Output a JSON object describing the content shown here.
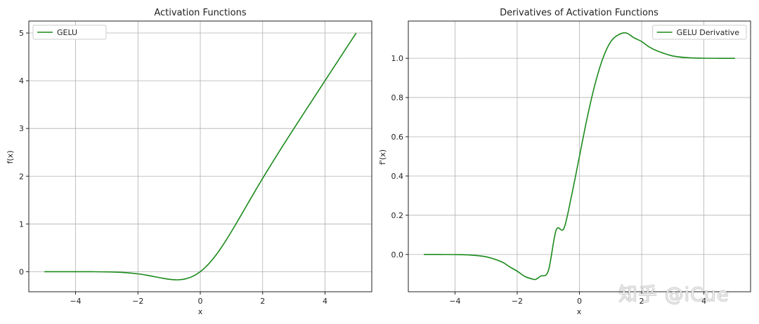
{
  "watermark": "知乎 @iCue",
  "chart_data": [
    {
      "type": "line",
      "title": "Activation Functions",
      "xlabel": "x",
      "ylabel": "f(x)",
      "xlim": [
        -5.5,
        5.5
      ],
      "ylim": [
        -0.42,
        5.25
      ],
      "xticks": [
        -4,
        -2,
        0,
        2,
        4
      ],
      "xtick_labels": [
        "−4",
        "−2",
        "0",
        "2",
        "4"
      ],
      "yticks": [
        0,
        1,
        2,
        3,
        4,
        5
      ],
      "ytick_labels": [
        "0",
        "1",
        "2",
        "3",
        "4",
        "5"
      ],
      "grid": true,
      "legend_position": "upper-left",
      "color": "#1a8a1a",
      "series": [
        {
          "name": "GELU",
          "x": [
            -5.0,
            -4.5,
            -4.0,
            -3.5,
            -3.0,
            -2.5,
            -2.0,
            -1.75,
            -1.5,
            -1.25,
            -1.0,
            -0.75,
            -0.5,
            -0.25,
            0.0,
            0.25,
            0.5,
            0.75,
            1.0,
            1.25,
            1.5,
            1.75,
            2.0,
            2.5,
            3.0,
            3.5,
            4.0,
            4.5,
            5.0
          ],
          "y": [
            0.0,
            0.0,
            -0.0001,
            -0.0008,
            -0.004,
            -0.0155,
            -0.0455,
            -0.0702,
            -0.1002,
            -0.132,
            -0.1587,
            -0.1702,
            -0.1543,
            -0.0998,
            0.0,
            0.1502,
            0.3457,
            0.5798,
            0.8413,
            1.118,
            1.3998,
            1.6798,
            1.9545,
            2.4845,
            2.996,
            3.4992,
            3.9999,
            4.5,
            5.0
          ]
        }
      ]
    },
    {
      "type": "line",
      "title": "Derivatives of Activation Functions",
      "xlabel": "x",
      "ylabel": "f'(x)",
      "xlim": [
        -5.5,
        5.5
      ],
      "ylim": [
        -0.19,
        1.19
      ],
      "xticks": [
        -4,
        -2,
        0,
        2,
        4
      ],
      "xtick_labels": [
        "−4",
        "−2",
        "0",
        "2",
        "4"
      ],
      "yticks": [
        0.0,
        0.2,
        0.4,
        0.6,
        0.8,
        1.0
      ],
      "ytick_labels": [
        "0.0",
        "0.2",
        "0.4",
        "0.6",
        "0.8",
        "1.0"
      ],
      "grid": true,
      "legend_position": "upper-right",
      "color": "#1a8a1a",
      "series": [
        {
          "name": "GELU Derivative",
          "x": [
            -5.0,
            -4.5,
            -4.0,
            -3.5,
            -3.0,
            -2.5,
            -2.25,
            -2.0,
            -1.75,
            -1.5,
            -1.4,
            -1.25,
            -1.0,
            -0.75,
            -0.5,
            -0.25,
            0.0,
            0.25,
            0.5,
            0.75,
            1.0,
            1.25,
            1.5,
            1.75,
            2.0,
            2.25,
            2.5,
            3.0,
            3.5,
            4.0,
            4.5,
            5.0
          ],
          "y": [
            0.0,
            0.0,
            -0.0005,
            -0.003,
            -0.0119,
            -0.0375,
            -0.0624,
            -0.0853,
            -0.1122,
            -0.1257,
            -0.1266,
            -0.1104,
            -0.0833,
            0.1237,
            0.1325,
            0.3025,
            0.5,
            0.6975,
            0.8675,
            0.9983,
            1.0833,
            1.1195,
            1.1292,
            1.105,
            1.0853,
            1.0573,
            1.0375,
            1.0119,
            1.003,
            1.0005,
            1.0,
            1.0
          ]
        }
      ]
    }
  ]
}
